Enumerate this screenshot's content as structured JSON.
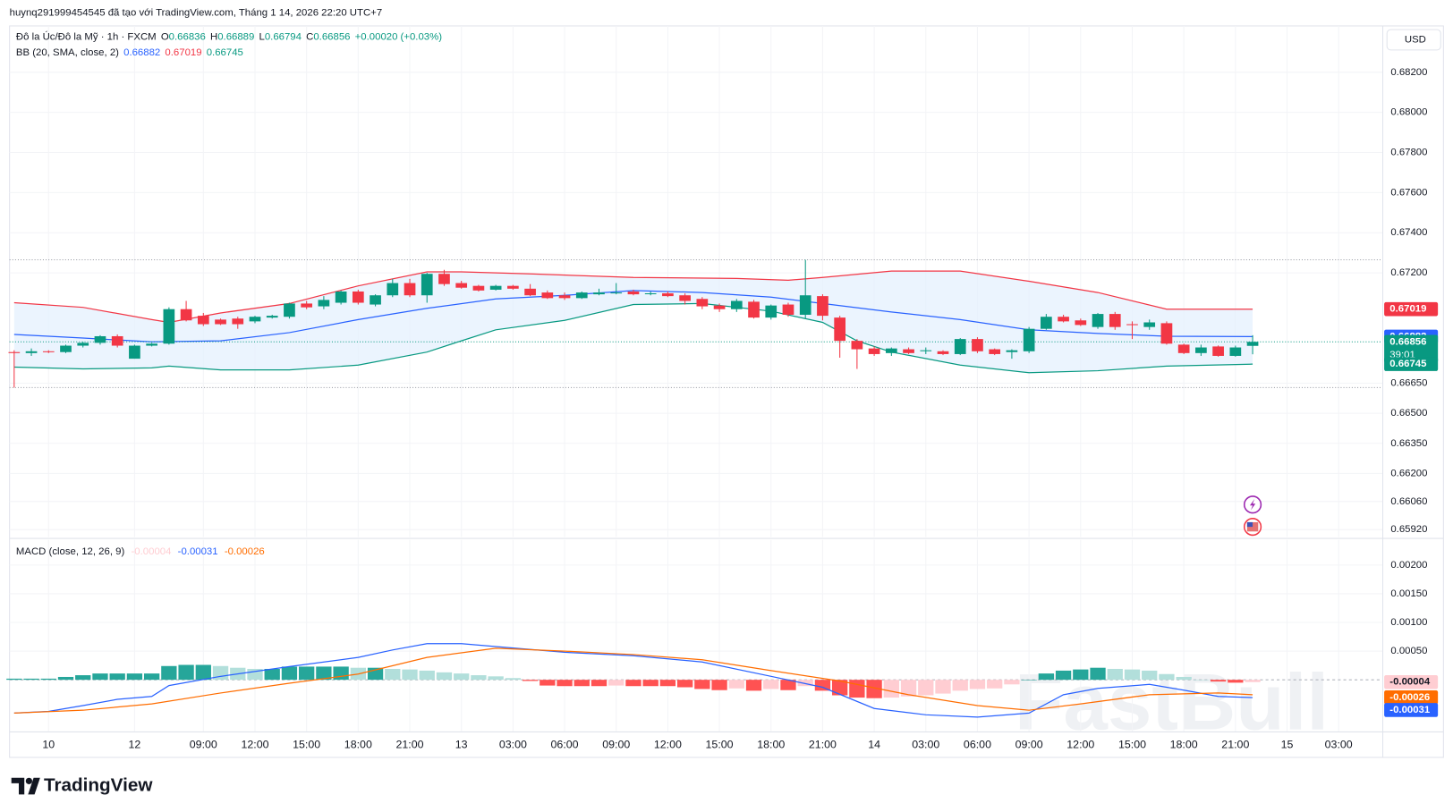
{
  "header": {
    "title": "huynq291999454545 đã tạo với TradingView.com, Tháng 1 14, 2026 22:20 UTC+7"
  },
  "currency": "USD",
  "brand": "TradingView",
  "watermark": "FastBull",
  "chart_data": [
    {
      "type": "candlestick",
      "symbol": "Đô la Úc/Đô la Mỹ · 1h · FXCM",
      "ohlc_legend": [
        {
          "label": "O",
          "value": 0.66836
        },
        {
          "label": "H",
          "value": 0.66889
        },
        {
          "label": "L",
          "value": 0.66794
        },
        {
          "label": "C",
          "value": 0.66856
        }
      ],
      "change": {
        "value": 0.0002,
        "label": "+0.00020"
      },
      "change_pct": {
        "value": 0.03,
        "label": "(+0.03%)"
      },
      "up_color": "#089981",
      "down_color": "#f23645",
      "open": [
        0.66805,
        0.668,
        0.66809,
        0.66805,
        0.66837,
        0.66851,
        0.66884,
        0.66772,
        0.66837,
        0.66847,
        0.67019,
        0.66986,
        0.66967,
        0.66972,
        0.66958,
        0.66977,
        0.66981,
        0.67047,
        0.67033,
        0.67051,
        0.67107,
        0.67042,
        0.67088,
        0.67149,
        0.67088,
        0.67195,
        0.67149,
        0.67135,
        0.67116,
        0.67135,
        0.67121,
        0.67102,
        0.67088,
        0.67074,
        0.67093,
        0.67098,
        0.67107,
        0.67096,
        0.67098,
        0.67088,
        0.6707,
        0.67037,
        0.67019,
        0.67056,
        0.66977,
        0.67042,
        0.66991,
        0.67084,
        0.66977,
        0.66861,
        0.66823,
        0.668,
        0.66819,
        0.66812,
        0.66809,
        0.66795,
        0.6687,
        0.66819,
        0.66805,
        0.66809,
        0.66921,
        0.66981,
        0.66963,
        0.6693,
        0.66995,
        0.66944,
        0.6693,
        0.66949,
        0.66842,
        0.668,
        0.66833,
        0.66786,
        0.66836
      ],
      "high": [
        0.66814,
        0.66823,
        0.66814,
        0.66842,
        0.66856,
        0.66889,
        0.66893,
        0.66842,
        0.66851,
        0.67028,
        0.6706,
        0.67,
        0.66972,
        0.66981,
        0.66986,
        0.66991,
        0.67051,
        0.6706,
        0.67084,
        0.67112,
        0.67116,
        0.67093,
        0.6717,
        0.6717,
        0.672,
        0.67215,
        0.6716,
        0.6714,
        0.6714,
        0.6714,
        0.67144,
        0.67112,
        0.67102,
        0.67107,
        0.67121,
        0.67149,
        0.67116,
        0.67107,
        0.67107,
        0.67098,
        0.67079,
        0.67047,
        0.6707,
        0.67065,
        0.67042,
        0.67051,
        0.67265,
        0.67093,
        0.66986,
        0.6687,
        0.66833,
        0.66828,
        0.66828,
        0.66828,
        0.66814,
        0.66875,
        0.66879,
        0.66823,
        0.66819,
        0.6693,
        0.66995,
        0.66991,
        0.66972,
        0.67,
        0.67005,
        0.66958,
        0.66967,
        0.66958,
        0.66847,
        0.66842,
        0.66838,
        0.66837,
        0.66889
      ],
      "low": [
        0.66628,
        0.66786,
        0.668,
        0.668,
        0.66828,
        0.66842,
        0.66828,
        0.66772,
        0.66833,
        0.66842,
        0.66958,
        0.66935,
        0.6694,
        0.66921,
        0.66949,
        0.66972,
        0.66972,
        0.67019,
        0.67019,
        0.67042,
        0.67042,
        0.67033,
        0.67079,
        0.67079,
        0.67051,
        0.67135,
        0.67121,
        0.67107,
        0.67112,
        0.67116,
        0.67084,
        0.6707,
        0.67065,
        0.6707,
        0.67088,
        0.67093,
        0.67088,
        0.67088,
        0.67079,
        0.67042,
        0.67019,
        0.67005,
        0.67005,
        0.66972,
        0.66967,
        0.66981,
        0.66972,
        0.66963,
        0.66777,
        0.66721,
        0.66786,
        0.66786,
        0.66795,
        0.66795,
        0.6679,
        0.6679,
        0.668,
        0.6679,
        0.66772,
        0.668,
        0.66916,
        0.66953,
        0.66935,
        0.66921,
        0.66916,
        0.6687,
        0.66916,
        0.66842,
        0.66795,
        0.66786,
        0.66782,
        0.66782,
        0.66794
      ],
      "close": [
        0.668,
        0.66809,
        0.66805,
        0.66837,
        0.66851,
        0.66884,
        0.66837,
        0.66837,
        0.66847,
        0.67019,
        0.66963,
        0.66944,
        0.66944,
        0.66944,
        0.66981,
        0.66986,
        0.67047,
        0.67028,
        0.67065,
        0.67107,
        0.67051,
        0.67088,
        0.67149,
        0.67088,
        0.67195,
        0.67144,
        0.67126,
        0.67112,
        0.67135,
        0.67121,
        0.67088,
        0.67074,
        0.67074,
        0.67102,
        0.67102,
        0.67102,
        0.67093,
        0.67098,
        0.67084,
        0.6706,
        0.67033,
        0.67019,
        0.6706,
        0.66977,
        0.67037,
        0.66991,
        0.67088,
        0.66986,
        0.66861,
        0.66819,
        0.66795,
        0.66823,
        0.668,
        0.66814,
        0.66795,
        0.6687,
        0.66809,
        0.66795,
        0.66814,
        0.66921,
        0.66981,
        0.66958,
        0.6694,
        0.66995,
        0.6693,
        0.6694,
        0.66953,
        0.66847,
        0.668,
        0.66828,
        0.66786,
        0.66828,
        0.66856
      ],
      "bb_legend": {
        "label": "BB (20, SMA, close, 2)",
        "values": [
          0.66882,
          0.67019,
          0.66745
        ]
      },
      "bands": [
        {
          "color": "#f23645",
          "x": [
            0,
            4,
            8,
            9,
            12,
            16,
            20,
            24,
            26,
            30,
            36,
            42,
            45,
            47,
            51,
            55,
            59,
            63,
            67,
            72
          ],
          "values": [
            0.67051,
            0.67028,
            0.66967,
            0.66953,
            0.67,
            0.67047,
            0.67135,
            0.67205,
            0.67205,
            0.67195,
            0.67177,
            0.67172,
            0.67163,
            0.67177,
            0.67209,
            0.67209,
            0.67158,
            0.67102,
            0.67019,
            0.67019
          ]
        },
        {
          "color": "#2962ff",
          "x": [
            0,
            4,
            8,
            12,
            16,
            20,
            24,
            28,
            32,
            36,
            40,
            44,
            47,
            51,
            55,
            59,
            63,
            67,
            72
          ],
          "values": [
            0.66893,
            0.66875,
            0.66856,
            0.66861,
            0.66902,
            0.66967,
            0.67023,
            0.6707,
            0.67088,
            0.67112,
            0.67102,
            0.67079,
            0.67047,
            0.67005,
            0.66967,
            0.66916,
            0.66898,
            0.66884,
            0.66882
          ]
        },
        {
          "color": "#089981",
          "x": [
            0,
            4,
            8,
            9,
            12,
            16,
            20,
            24,
            26,
            28,
            32,
            36,
            40,
            44,
            47,
            49,
            51,
            55,
            59,
            63,
            67,
            72
          ],
          "values": [
            0.6673,
            0.66721,
            0.66726,
            0.66735,
            0.66716,
            0.66716,
            0.6674,
            0.66805,
            0.66861,
            0.66916,
            0.66963,
            0.67042,
            0.67047,
            0.67009,
            0.66953,
            0.66861,
            0.66805,
            0.6674,
            0.66702,
            0.66712,
            0.66735,
            0.66745
          ]
        }
      ],
      "band_fill": "#e3effd",
      "price_labels": [
        {
          "value": 0.67019,
          "color": "#f23645"
        },
        {
          "value": 0.66882,
          "color": "#2962ff"
        },
        {
          "value": 0.66856,
          "color": "#089981",
          "countdown": "39:01"
        },
        {
          "value": 0.66745,
          "color": "#089981"
        }
      ],
      "xlim": [
        -0.27,
        79.54
      ],
      "xticks": [
        {
          "value": 2,
          "label": "10"
        },
        {
          "value": 7,
          "label": "12"
        },
        {
          "value": 11,
          "label": "09:00"
        },
        {
          "value": 14,
          "label": "12:00"
        },
        {
          "value": 17,
          "label": "15:00"
        },
        {
          "value": 20,
          "label": "18:00"
        },
        {
          "value": 23,
          "label": "21:00"
        },
        {
          "value": 26,
          "label": "13"
        },
        {
          "value": 29,
          "label": "03:00"
        },
        {
          "value": 32,
          "label": "06:00"
        },
        {
          "value": 35,
          "label": "09:00"
        },
        {
          "value": 38,
          "label": "12:00"
        },
        {
          "value": 41,
          "label": "15:00"
        },
        {
          "value": 44,
          "label": "18:00"
        },
        {
          "value": 47,
          "label": "21:00"
        },
        {
          "value": 50,
          "label": "14"
        },
        {
          "value": 53,
          "label": "03:00"
        },
        {
          "value": 56,
          "label": "06:00"
        },
        {
          "value": 59,
          "label": "09:00"
        },
        {
          "value": 62,
          "label": "12:00"
        },
        {
          "value": 65,
          "label": "15:00"
        },
        {
          "value": 68,
          "label": "18:00"
        },
        {
          "value": 71,
          "label": "21:00"
        },
        {
          "value": 74,
          "label": "15"
        },
        {
          "value": 77,
          "label": "03:00"
        }
      ],
      "ylim": [
        0.65883,
        0.68431
      ],
      "yticks": [
        {
          "value": 0.682,
          "label": "0.68200"
        },
        {
          "value": 0.68,
          "label": "0.68000"
        },
        {
          "value": 0.678,
          "label": "0.67800"
        },
        {
          "value": 0.676,
          "label": "0.67600"
        },
        {
          "value": 0.674,
          "label": "0.67400"
        },
        {
          "value": 0.672,
          "label": "0.67200"
        },
        {
          "value": 0.6665,
          "label": "0.66650"
        },
        {
          "value": 0.665,
          "label": "0.66500"
        },
        {
          "value": 0.6635,
          "label": "0.66350"
        },
        {
          "value": 0.662,
          "label": "0.66200"
        },
        {
          "value": 0.6606,
          "label": "0.66060"
        },
        {
          "value": 0.6592,
          "label": "0.65920"
        }
      ],
      "grid": true
    },
    {
      "type": "macd",
      "legend": {
        "label": "MACD (close, 12, 26, 9)",
        "values": [
          -4e-05,
          -0.00031,
          -0.00026
        ]
      },
      "legend_colors": [
        "#ffcdd2",
        "#2962ff",
        "#ff6d00"
      ],
      "histogram": [
        2e-05,
        2e-05,
        2e-05,
        5e-05,
        8e-05,
        0.00011,
        0.00011,
        0.00011,
        0.00011,
        0.00024,
        0.00026,
        0.00026,
        0.00024,
        0.00021,
        0.00019,
        0.00019,
        0.00023,
        0.00023,
        0.00023,
        0.00023,
        0.00021,
        0.00021,
        0.00019,
        0.00018,
        0.00016,
        0.00013,
        0.00011,
        8e-05,
        6e-05,
        3e-05,
        -2e-05,
        -0.0001,
        -0.00011,
        -0.00011,
        -0.00011,
        -0.0001,
        -0.00011,
        -0.00011,
        -0.00011,
        -0.00013,
        -0.00016,
        -0.00018,
        -0.00015,
        -0.00019,
        -0.00016,
        -0.00018,
        -0.00011,
        -0.00019,
        -0.00027,
        -0.00031,
        -0.00032,
        -0.00031,
        -0.00029,
        -0.00027,
        -0.00024,
        -0.00019,
        -0.00016,
        -0.00015,
        -8e-05,
        0,
        0.00011,
        0.00016,
        0.00018,
        0.00021,
        0.00019,
        0.00018,
        0.00016,
        0.0001,
        5e-05,
        0,
        -3e-05,
        -5e-05,
        -4e-05
      ],
      "hist_colors": {
        "up_strong": "#26a69a",
        "up_weak": "#b2dfdb",
        "down_strong": "#ff5252",
        "down_weak": "#ffcdd2"
      },
      "series": [
        {
          "color": "#2962ff",
          "x": [
            0,
            2,
            4,
            6,
            8,
            9,
            12,
            16,
            20,
            22,
            24,
            26,
            28,
            32,
            36,
            40,
            44,
            47,
            50,
            53,
            56,
            59,
            61,
            63,
            66,
            68,
            70,
            72
          ],
          "values": [
            -0.00058,
            -0.00055,
            -0.00045,
            -0.00034,
            -0.00029,
            -0.0001,
            6e-05,
            0.00023,
            0.00039,
            0.00052,
            0.00063,
            0.00063,
            0.00058,
            0.00048,
            0.00042,
            0.00031,
            6e-05,
            -0.00013,
            -0.0005,
            -0.00061,
            -0.00065,
            -0.00058,
            -0.00026,
            -0.00015,
            -8e-05,
            -0.00018,
            -0.00029,
            -0.00031
          ]
        },
        {
          "color": "#ff6d00",
          "x": [
            0,
            4,
            8,
            12,
            16,
            20,
            24,
            28,
            32,
            36,
            40,
            44,
            48,
            52,
            56,
            59,
            62,
            66,
            70,
            72
          ],
          "values": [
            -0.00058,
            -0.00053,
            -0.00042,
            -0.00023,
            -6e-05,
            0.0001,
            0.00039,
            0.00055,
            0.0005,
            0.00044,
            0.00035,
            0.00016,
            -2e-05,
            -0.00026,
            -0.00045,
            -0.00053,
            -0.00042,
            -0.00026,
            -0.00023,
            -0.00026
          ]
        }
      ],
      "value_badges": [
        {
          "value": -4e-05,
          "color": "#ffcdd2",
          "text_color": "#131722"
        },
        {
          "value": -0.00026,
          "color": "#ff6d00",
          "text_color": "#ffffff"
        },
        {
          "value": -0.00031,
          "color": "#2962ff",
          "text_color": "#ffffff"
        }
      ],
      "ylim": [
        -0.0009,
        0.00244
      ],
      "yticks": [
        {
          "value": 0.002,
          "label": "0.00200"
        },
        {
          "value": 0.0015,
          "label": "0.00150"
        },
        {
          "value": 0.001,
          "label": "0.00100"
        },
        {
          "value": 0.0005,
          "label": "0.00050"
        }
      ],
      "grid": true
    }
  ]
}
